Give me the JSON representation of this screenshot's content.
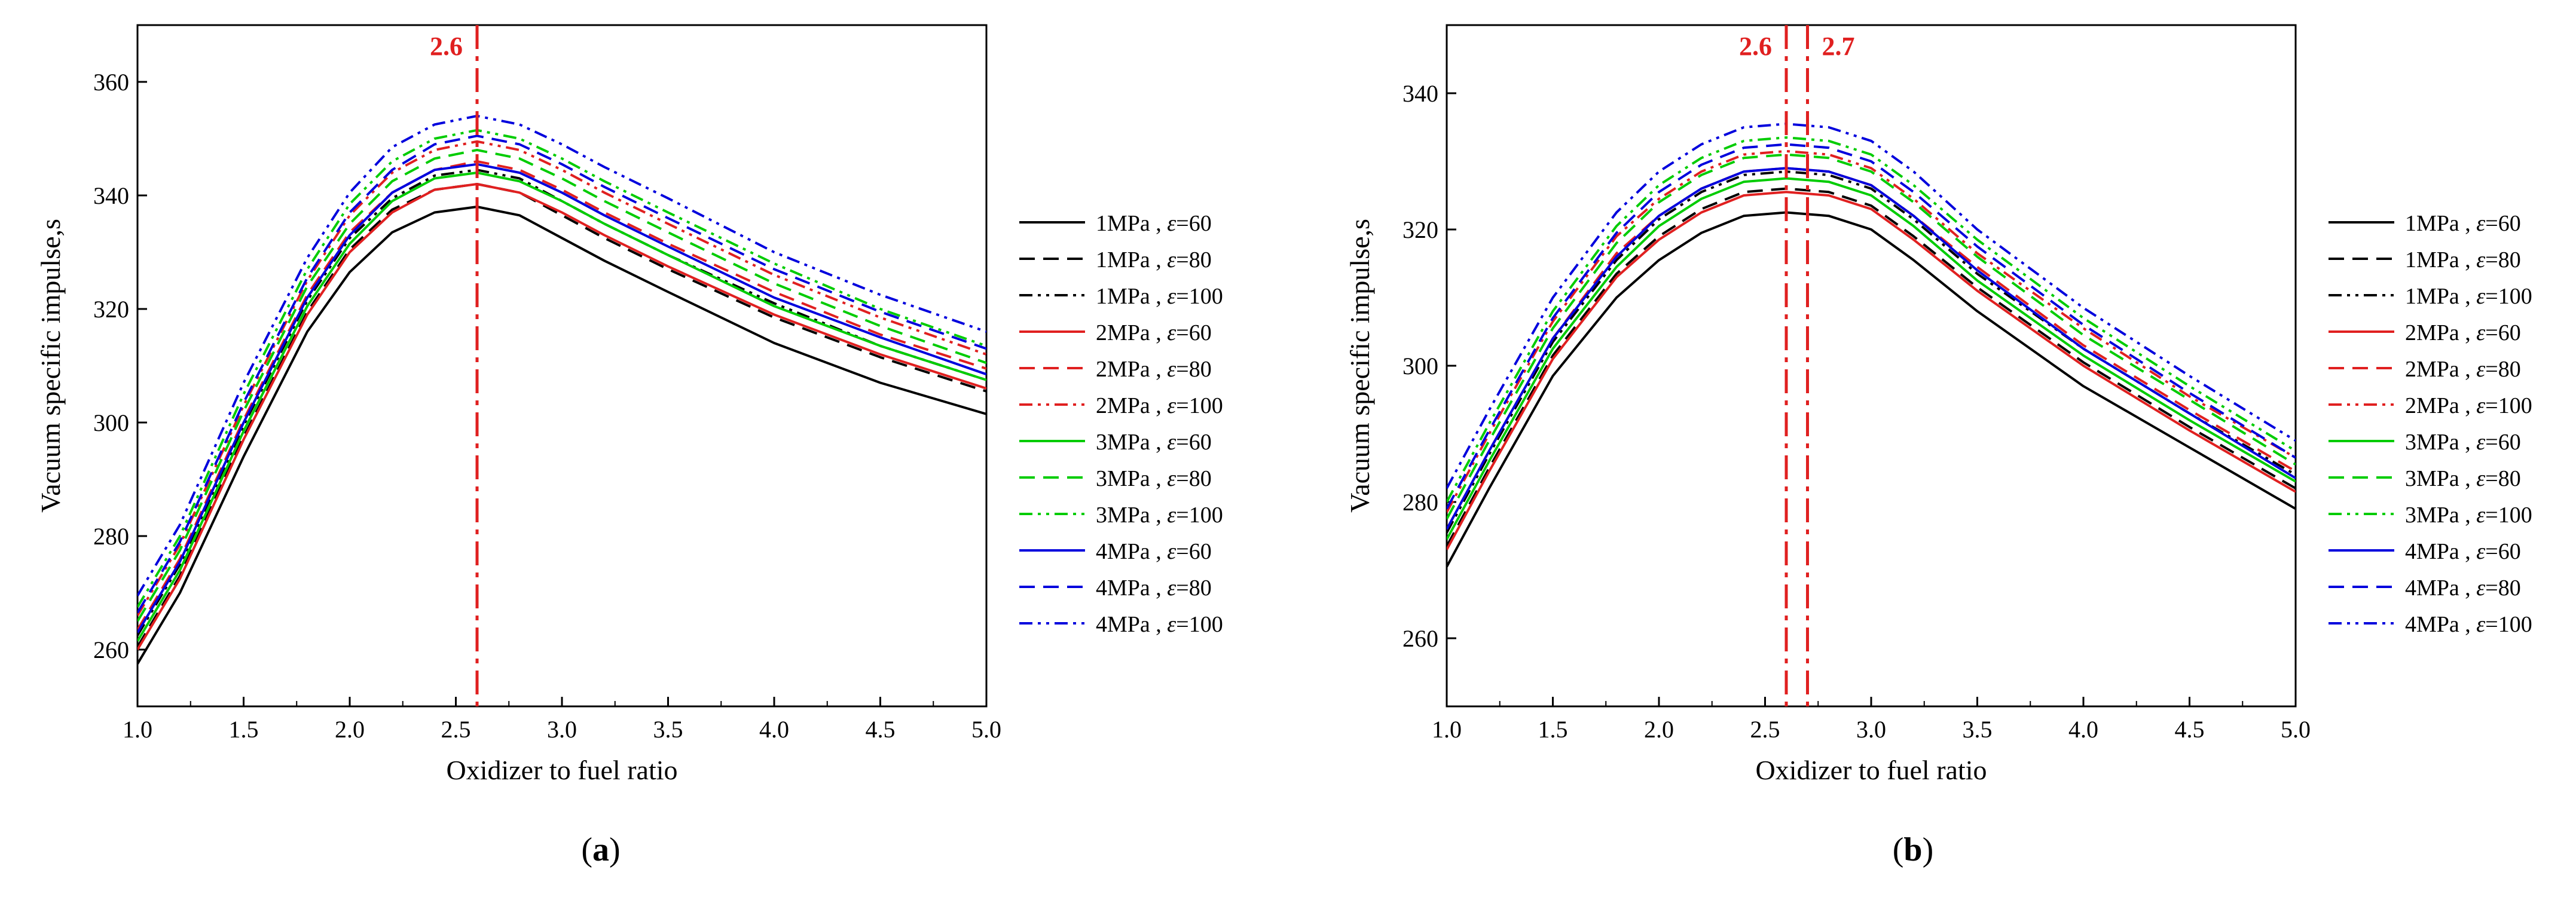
{
  "chart_data": [
    {
      "type": "line",
      "panel_label": "(a)",
      "xlabel": "Oxidizer to fuel ratio",
      "ylabel": "Vacuum specific impulse,s",
      "xlim": [
        1.0,
        5.0
      ],
      "ylim": [
        250,
        370
      ],
      "x_ticks": [
        "1.0",
        "1.5",
        "2.0",
        "2.5",
        "3.0",
        "3.5",
        "4.0",
        "4.5",
        "5.0"
      ],
      "y_ticks": [
        "260",
        "280",
        "300",
        "320",
        "340",
        "360"
      ],
      "reference_lines": [
        {
          "x": 2.6,
          "label": "2.6",
          "color": "#e02020"
        }
      ],
      "x": [
        1.0,
        1.2,
        1.5,
        1.8,
        2.0,
        2.2,
        2.4,
        2.6,
        2.8,
        3.0,
        3.2,
        3.5,
        4.0,
        4.5,
        5.0
      ],
      "series": [
        {
          "name": "1MPa , ε=60",
          "color": "#000000",
          "dash": "solid",
          "values": [
            257.5,
            270.0,
            294.0,
            316.0,
            326.5,
            333.5,
            337.0,
            338.0,
            336.5,
            332.5,
            328.5,
            323.0,
            314.0,
            307.0,
            301.5
          ]
        },
        {
          "name": "1MPa , ε=80",
          "color": "#000000",
          "dash": "dash",
          "values": [
            260.5,
            273.0,
            297.5,
            319.5,
            330.5,
            337.5,
            341.0,
            342.0,
            340.5,
            336.5,
            332.5,
            327.0,
            318.5,
            311.5,
            305.5
          ]
        },
        {
          "name": "1MPa , ε=100",
          "color": "#000000",
          "dash": "dashdotdot",
          "values": [
            262.5,
            275.0,
            299.5,
            321.5,
            332.5,
            339.5,
            343.5,
            344.5,
            343.0,
            339.0,
            335.0,
            329.5,
            321.0,
            313.5,
            307.5
          ]
        },
        {
          "name": "2MPa , ε=60",
          "color": "#e02020",
          "dash": "solid",
          "values": [
            260.0,
            272.5,
            297.0,
            319.0,
            330.0,
            337.0,
            341.0,
            342.0,
            340.5,
            337.0,
            333.0,
            327.5,
            319.0,
            312.0,
            306.0
          ]
        },
        {
          "name": "2MPa , ε=80",
          "color": "#e02020",
          "dash": "dash",
          "values": [
            263.5,
            276.0,
            300.5,
            322.5,
            333.5,
            340.5,
            344.5,
            346.0,
            344.5,
            341.0,
            337.0,
            331.5,
            323.0,
            315.5,
            309.5
          ]
        },
        {
          "name": "2MPa , ε=100",
          "color": "#e02020",
          "dash": "dashdotdot",
          "values": [
            266.0,
            278.5,
            303.0,
            325.0,
            336.5,
            344.0,
            348.0,
            349.5,
            348.0,
            344.5,
            340.5,
            335.0,
            326.0,
            318.5,
            312.0
          ]
        },
        {
          "name": "3MPa , ε=60",
          "color": "#00cc00",
          "dash": "solid",
          "values": [
            261.5,
            274.0,
            298.5,
            320.5,
            331.5,
            339.0,
            343.0,
            344.0,
            342.5,
            339.0,
            335.0,
            329.5,
            320.5,
            313.5,
            307.5
          ]
        },
        {
          "name": "3MPa , ε=80",
          "color": "#00cc00",
          "dash": "dash",
          "values": [
            265.0,
            277.5,
            302.0,
            324.0,
            335.0,
            342.5,
            346.5,
            348.0,
            346.5,
            343.0,
            339.0,
            333.5,
            324.5,
            317.0,
            310.5
          ]
        },
        {
          "name": "3MPa , ε=100",
          "color": "#00cc00",
          "dash": "dashdotdot",
          "values": [
            267.5,
            280.0,
            305.0,
            327.0,
            338.5,
            346.0,
            350.0,
            351.5,
            350.0,
            346.5,
            342.5,
            337.0,
            328.0,
            320.0,
            313.5
          ]
        },
        {
          "name": "4MPa , ε=60",
          "color": "#0000dd",
          "dash": "solid",
          "values": [
            263.0,
            275.5,
            300.0,
            322.0,
            333.0,
            340.5,
            344.5,
            345.5,
            344.0,
            340.5,
            336.5,
            331.0,
            322.0,
            315.0,
            308.5
          ]
        },
        {
          "name": "4MPa , ε=80",
          "color": "#0000dd",
          "dash": "dash",
          "values": [
            266.5,
            279.0,
            303.5,
            325.5,
            337.0,
            344.5,
            349.0,
            350.5,
            349.0,
            345.5,
            341.5,
            336.0,
            327.0,
            319.5,
            313.0
          ]
        },
        {
          "name": "4MPa , ε=100",
          "color": "#0000dd",
          "dash": "dashdotdot",
          "values": [
            269.5,
            282.0,
            307.0,
            329.0,
            340.5,
            348.5,
            352.5,
            354.0,
            352.5,
            349.0,
            345.0,
            339.5,
            330.0,
            322.5,
            316.0
          ]
        }
      ]
    },
    {
      "type": "line",
      "panel_label": "(b)",
      "xlabel": "Oxidizer to fuel ratio",
      "ylabel": "Vacuum specific impulse,s",
      "xlim": [
        1.0,
        5.0
      ],
      "ylim": [
        250,
        350
      ],
      "x_ticks": [
        "1.0",
        "1.5",
        "2.0",
        "2.5",
        "3.0",
        "3.5",
        "4.0",
        "4.5",
        "5.0"
      ],
      "y_ticks": [
        "260",
        "280",
        "300",
        "320",
        "340"
      ],
      "reference_lines": [
        {
          "x": 2.6,
          "label": "2.6",
          "color": "#e02020"
        },
        {
          "x": 2.7,
          "label": "2.7",
          "color": "#e02020"
        }
      ],
      "x": [
        1.0,
        1.2,
        1.5,
        1.8,
        2.0,
        2.2,
        2.4,
        2.6,
        2.8,
        3.0,
        3.2,
        3.5,
        4.0,
        4.5,
        5.0
      ],
      "series": [
        {
          "name": "1MPa , ε=60",
          "color": "#000000",
          "dash": "solid",
          "values": [
            270.5,
            282.0,
            298.5,
            310.0,
            315.5,
            319.5,
            322.0,
            322.5,
            322.0,
            320.0,
            315.5,
            308.0,
            297.0,
            288.0,
            279.0
          ]
        },
        {
          "name": "1MPa , ε=80",
          "color": "#000000",
          "dash": "dash",
          "values": [
            273.5,
            285.0,
            301.5,
            313.5,
            319.0,
            323.0,
            325.5,
            326.0,
            325.5,
            323.5,
            319.0,
            311.5,
            300.5,
            291.0,
            282.0
          ]
        },
        {
          "name": "1MPa , ε=100",
          "color": "#000000",
          "dash": "dashdotdot",
          "values": [
            275.5,
            287.0,
            303.5,
            315.5,
            321.5,
            325.5,
            328.0,
            328.5,
            328.0,
            326.0,
            321.5,
            313.5,
            302.5,
            293.0,
            284.0
          ]
        },
        {
          "name": "2MPa , ε=60",
          "color": "#e02020",
          "dash": "solid",
          "values": [
            273.0,
            284.5,
            301.0,
            313.0,
            318.5,
            322.5,
            325.0,
            325.5,
            325.0,
            323.0,
            318.5,
            311.0,
            300.0,
            290.5,
            281.5
          ]
        },
        {
          "name": "2MPa , ε=80",
          "color": "#e02020",
          "dash": "dash",
          "values": [
            276.0,
            287.5,
            304.0,
            316.5,
            322.0,
            326.0,
            328.5,
            329.0,
            328.5,
            326.5,
            322.0,
            314.5,
            303.0,
            293.5,
            284.5
          ]
        },
        {
          "name": "2MPa , ε=100",
          "color": "#e02020",
          "dash": "dashdotdot",
          "values": [
            278.5,
            290.0,
            306.5,
            319.0,
            324.5,
            328.5,
            331.0,
            331.5,
            331.0,
            329.0,
            324.5,
            316.5,
            305.5,
            295.5,
            286.5
          ]
        },
        {
          "name": "3MPa , ε=60",
          "color": "#00cc00",
          "dash": "solid",
          "values": [
            274.5,
            286.0,
            302.5,
            314.5,
            320.5,
            324.5,
            327.0,
            327.5,
            327.0,
            325.0,
            320.5,
            312.5,
            301.5,
            292.0,
            283.0
          ]
        },
        {
          "name": "3MPa , ε=80",
          "color": "#00cc00",
          "dash": "dash",
          "values": [
            277.5,
            289.0,
            305.5,
            318.0,
            324.0,
            328.0,
            330.5,
            331.0,
            330.5,
            328.5,
            324.0,
            316.0,
            304.5,
            295.0,
            285.5
          ]
        },
        {
          "name": "3MPa , ε=100",
          "color": "#00cc00",
          "dash": "dashdotdot",
          "values": [
            280.0,
            291.5,
            308.0,
            320.5,
            326.5,
            330.5,
            333.0,
            333.5,
            333.0,
            331.0,
            326.5,
            318.5,
            307.0,
            297.0,
            287.5
          ]
        },
        {
          "name": "4MPa , ε=60",
          "color": "#0000dd",
          "dash": "solid",
          "values": [
            276.0,
            287.5,
            304.0,
            316.0,
            322.0,
            326.0,
            328.5,
            329.0,
            328.5,
            326.5,
            322.0,
            314.0,
            302.5,
            293.0,
            283.5
          ]
        },
        {
          "name": "4MPa , ε=80",
          "color": "#0000dd",
          "dash": "dash",
          "values": [
            279.0,
            290.5,
            307.0,
            319.5,
            325.5,
            329.5,
            332.0,
            332.5,
            332.0,
            330.0,
            325.5,
            317.5,
            306.0,
            296.0,
            286.5
          ]
        },
        {
          "name": "4MPa , ε=100",
          "color": "#0000dd",
          "dash": "dashdotdot",
          "values": [
            282.0,
            293.5,
            310.0,
            322.5,
            328.5,
            332.5,
            335.0,
            335.5,
            335.0,
            333.0,
            328.5,
            320.0,
            308.5,
            298.5,
            289.0
          ]
        }
      ]
    }
  ]
}
